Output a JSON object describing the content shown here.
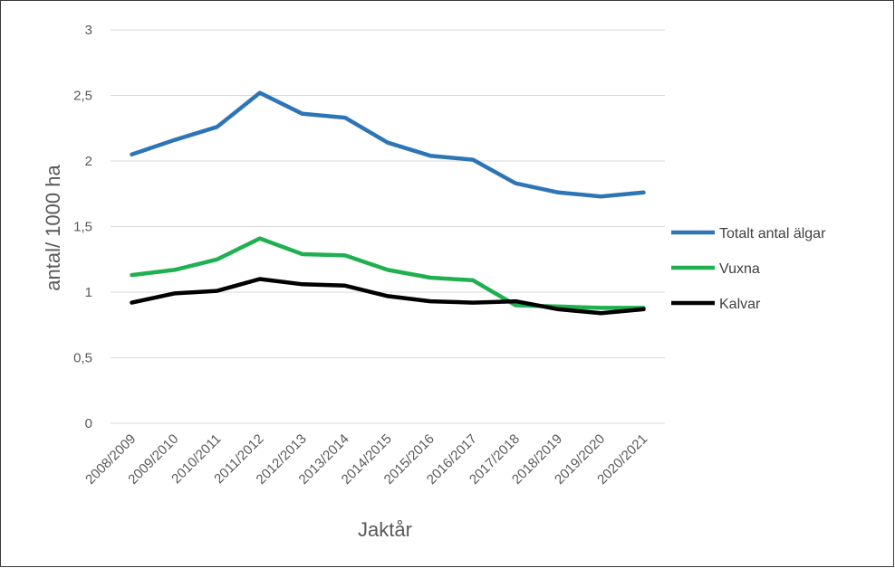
{
  "chart_data": {
    "type": "line",
    "title": "",
    "xlabel": "Jaktår",
    "ylabel": "antal/ 1000 ha",
    "ylim": [
      0,
      3
    ],
    "yticks": [
      "0",
      "0,5",
      "1",
      "1,5",
      "2",
      "2,5",
      "3"
    ],
    "ytick_values": [
      0,
      0.5,
      1,
      1.5,
      2,
      2.5,
      3
    ],
    "grid": "horizontal",
    "legend_position": "right",
    "categories": [
      "2008/2009",
      "2009/2010",
      "2010/2011",
      "2011/2012",
      "2012/2013",
      "2013/2014",
      "2014/2015",
      "2015/2016",
      "2016/2017",
      "2017/2018",
      "2018/2019",
      "2019/2020",
      "2020/2021"
    ],
    "series": [
      {
        "name": "Totalt antal älgar",
        "color": "#2e75b6",
        "values": [
          2.05,
          2.16,
          2.26,
          2.52,
          2.36,
          2.33,
          2.14,
          2.04,
          2.01,
          1.83,
          1.76,
          1.73,
          1.76
        ]
      },
      {
        "name": "Vuxna",
        "color": "#20b050",
        "values": [
          1.13,
          1.17,
          1.25,
          1.41,
          1.29,
          1.28,
          1.17,
          1.11,
          1.09,
          0.9,
          0.89,
          0.88,
          0.88
        ]
      },
      {
        "name": "Kalvar",
        "color": "#000000",
        "values": [
          0.92,
          0.99,
          1.01,
          1.1,
          1.06,
          1.05,
          0.97,
          0.93,
          0.92,
          0.93,
          0.87,
          0.84,
          0.87
        ]
      }
    ]
  }
}
